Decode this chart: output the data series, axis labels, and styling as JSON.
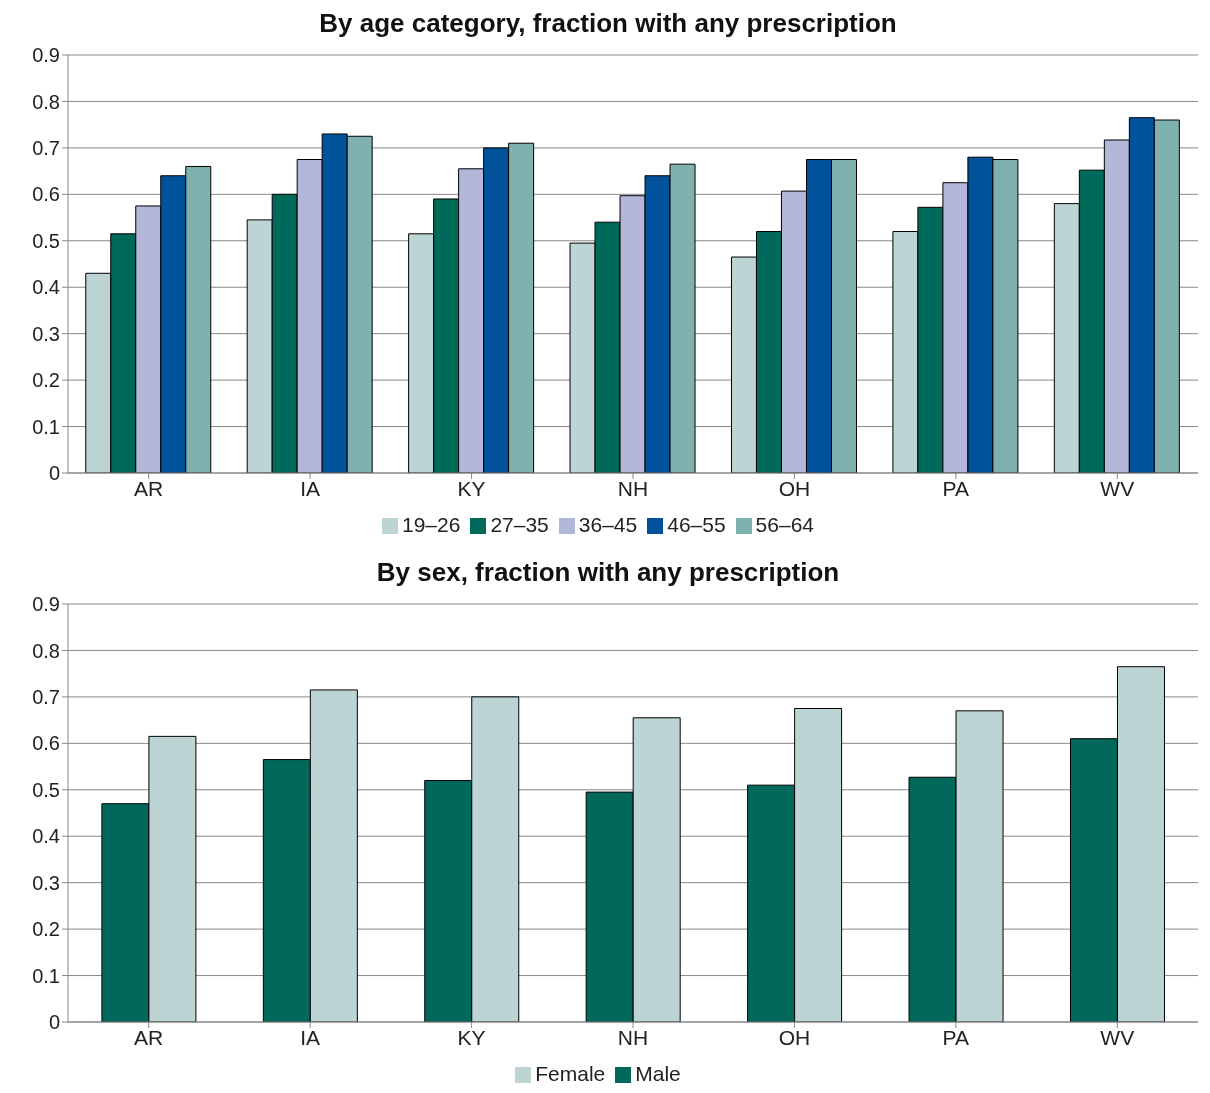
{
  "chart_data": [
    {
      "type": "bar",
      "title": "By age category, fraction with any prescription",
      "categories": [
        "AR",
        "IA",
        "KY",
        "NH",
        "OH",
        "PA",
        "WV"
      ],
      "series": [
        {
          "name": "19–26",
          "color": "#bcd4d4",
          "values": [
            0.43,
            0.545,
            0.515,
            0.495,
            0.465,
            0.52,
            0.58
          ]
        },
        {
          "name": "27–35",
          "color": "#006a5a",
          "values": [
            0.515,
            0.6,
            0.59,
            0.54,
            0.52,
            0.572,
            0.652
          ]
        },
        {
          "name": "36–45",
          "color": "#b3b8db",
          "values": [
            0.575,
            0.675,
            0.655,
            0.597,
            0.607,
            0.625,
            0.717
          ]
        },
        {
          "name": "46–55",
          "color": "#00529b",
          "values": [
            0.64,
            0.73,
            0.7,
            0.64,
            0.675,
            0.68,
            0.765
          ]
        },
        {
          "name": "56–64",
          "color": "#7fb2ae",
          "values": [
            0.66,
            0.725,
            0.71,
            0.665,
            0.675,
            0.675,
            0.76
          ]
        }
      ],
      "ylim": [
        0,
        0.9
      ],
      "yticks": [
        0,
        0.1,
        0.2,
        0.3,
        0.4,
        0.5,
        0.6,
        0.7,
        0.8,
        0.9
      ],
      "grid": "y",
      "legend": "bottom"
    },
    {
      "type": "bar",
      "title": "By sex, fraction with any prescription",
      "categories": [
        "AR",
        "IA",
        "KY",
        "NH",
        "OH",
        "PA",
        "WV"
      ],
      "series": [
        {
          "name": "Male",
          "color": "#00695c",
          "values": [
            0.47,
            0.565,
            0.52,
            0.495,
            0.51,
            0.527,
            0.61
          ]
        },
        {
          "name": "Female",
          "color": "#bcd4d4",
          "values": [
            0.615,
            0.715,
            0.7,
            0.655,
            0.675,
            0.67,
            0.765
          ]
        }
      ],
      "ylim": [
        0,
        0.9
      ],
      "yticks": [
        0,
        0.1,
        0.2,
        0.3,
        0.4,
        0.5,
        0.6,
        0.7,
        0.8,
        0.9
      ],
      "grid": "y",
      "legend": "bottom"
    }
  ]
}
